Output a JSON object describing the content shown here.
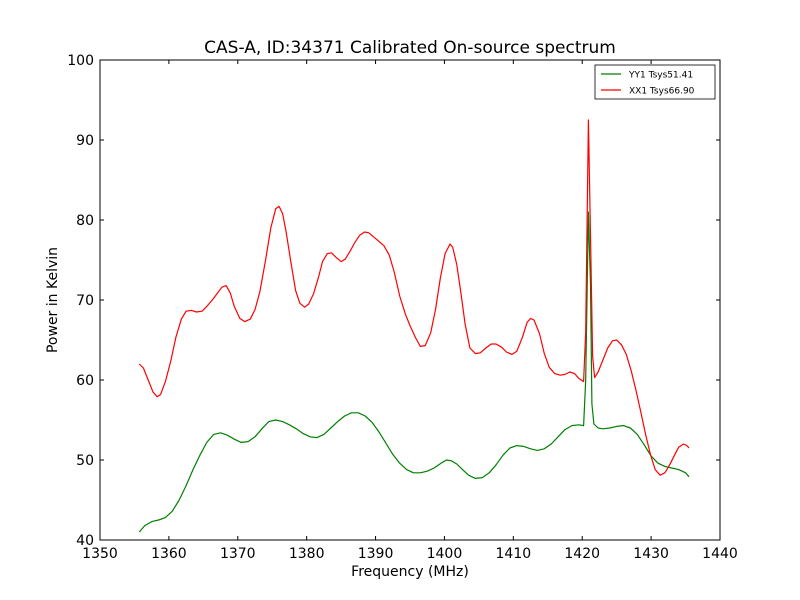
{
  "chart_data": {
    "type": "line",
    "title": "CAS-A, ID:34371 Calibrated On-source spectrum",
    "xlabel": "Frequency (MHz)",
    "ylabel": "Power in Kelvin",
    "xlim": [
      1350,
      1440
    ],
    "ylim": [
      40,
      100
    ],
    "xticks": [
      1350,
      1360,
      1370,
      1380,
      1390,
      1400,
      1410,
      1420,
      1430,
      1440
    ],
    "yticks": [
      40,
      50,
      60,
      70,
      80,
      90,
      100
    ],
    "grid": false,
    "legend_position": "top-right",
    "series": [
      {
        "name": "YY1 Tsys51.41",
        "color": "#008000",
        "points": [
          [
            1355.7,
            41.0
          ],
          [
            1356.5,
            41.8
          ],
          [
            1357.5,
            42.3
          ],
          [
            1358.5,
            42.5
          ],
          [
            1359.5,
            42.8
          ],
          [
            1360.5,
            43.6
          ],
          [
            1361.5,
            45.0
          ],
          [
            1362.5,
            46.8
          ],
          [
            1363.5,
            48.8
          ],
          [
            1364.5,
            50.6
          ],
          [
            1365.5,
            52.2
          ],
          [
            1366.5,
            53.2
          ],
          [
            1367.5,
            53.4
          ],
          [
            1368.5,
            53.1
          ],
          [
            1369.5,
            52.6
          ],
          [
            1370.5,
            52.2
          ],
          [
            1371.5,
            52.3
          ],
          [
            1372.5,
            52.9
          ],
          [
            1373.5,
            53.9
          ],
          [
            1374.5,
            54.8
          ],
          [
            1375.5,
            55.0
          ],
          [
            1376.5,
            54.8
          ],
          [
            1377.5,
            54.4
          ],
          [
            1378.5,
            53.9
          ],
          [
            1379.5,
            53.3
          ],
          [
            1380.5,
            52.9
          ],
          [
            1381.5,
            52.8
          ],
          [
            1382.5,
            53.2
          ],
          [
            1383.5,
            54.0
          ],
          [
            1384.5,
            54.8
          ],
          [
            1385.5,
            55.5
          ],
          [
            1386.5,
            55.9
          ],
          [
            1387.5,
            55.9
          ],
          [
            1388.5,
            55.5
          ],
          [
            1389.5,
            54.7
          ],
          [
            1390.5,
            53.5
          ],
          [
            1391.5,
            52.1
          ],
          [
            1392.5,
            50.7
          ],
          [
            1393.5,
            49.6
          ],
          [
            1394.5,
            48.8
          ],
          [
            1395.5,
            48.4
          ],
          [
            1396.5,
            48.4
          ],
          [
            1397.5,
            48.6
          ],
          [
            1398.5,
            49.0
          ],
          [
            1399.5,
            49.6
          ],
          [
            1400.3,
            50.0
          ],
          [
            1401.0,
            49.9
          ],
          [
            1401.8,
            49.5
          ],
          [
            1402.5,
            48.9
          ],
          [
            1403.5,
            48.1
          ],
          [
            1404.5,
            47.7
          ],
          [
            1405.5,
            47.8
          ],
          [
            1406.5,
            48.4
          ],
          [
            1407.5,
            49.4
          ],
          [
            1408.5,
            50.6
          ],
          [
            1409.5,
            51.5
          ],
          [
            1410.5,
            51.8
          ],
          [
            1411.5,
            51.7
          ],
          [
            1412.5,
            51.4
          ],
          [
            1413.5,
            51.2
          ],
          [
            1414.5,
            51.4
          ],
          [
            1415.5,
            52.0
          ],
          [
            1416.5,
            52.9
          ],
          [
            1417.5,
            53.8
          ],
          [
            1418.5,
            54.3
          ],
          [
            1419.5,
            54.4
          ],
          [
            1420.2,
            54.3
          ],
          [
            1420.5,
            60.0
          ],
          [
            1420.9,
            81.0
          ],
          [
            1421.2,
            72.0
          ],
          [
            1421.4,
            57.0
          ],
          [
            1421.7,
            54.5
          ],
          [
            1422.3,
            54.0
          ],
          [
            1423.0,
            53.9
          ],
          [
            1424.0,
            54.0
          ],
          [
            1425.0,
            54.2
          ],
          [
            1426.0,
            54.3
          ],
          [
            1427.0,
            54.0
          ],
          [
            1428.0,
            53.2
          ],
          [
            1429.0,
            51.9
          ],
          [
            1430.0,
            50.5
          ],
          [
            1431.0,
            49.6
          ],
          [
            1432.0,
            49.2
          ],
          [
            1433.0,
            49.0
          ],
          [
            1434.0,
            48.8
          ],
          [
            1435.0,
            48.4
          ],
          [
            1435.5,
            47.9
          ]
        ]
      },
      {
        "name": "XX1 Tsys66.90",
        "color": "#ff0000",
        "points": [
          [
            1355.7,
            62.0
          ],
          [
            1356.3,
            61.5
          ],
          [
            1357.0,
            60.0
          ],
          [
            1357.7,
            58.5
          ],
          [
            1358.3,
            57.9
          ],
          [
            1358.8,
            58.2
          ],
          [
            1359.5,
            59.8
          ],
          [
            1360.3,
            62.5
          ],
          [
            1361.0,
            65.3
          ],
          [
            1361.8,
            67.6
          ],
          [
            1362.5,
            68.6
          ],
          [
            1363.3,
            68.7
          ],
          [
            1364.0,
            68.5
          ],
          [
            1364.8,
            68.6
          ],
          [
            1365.5,
            69.2
          ],
          [
            1366.3,
            70.0
          ],
          [
            1367.0,
            70.8
          ],
          [
            1367.7,
            71.6
          ],
          [
            1368.3,
            71.8
          ],
          [
            1368.9,
            70.9
          ],
          [
            1369.5,
            69.2
          ],
          [
            1370.3,
            67.7
          ],
          [
            1371.0,
            67.3
          ],
          [
            1371.8,
            67.6
          ],
          [
            1372.5,
            68.8
          ],
          [
            1373.2,
            71.0
          ],
          [
            1374.0,
            74.8
          ],
          [
            1374.8,
            79.0
          ],
          [
            1375.5,
            81.4
          ],
          [
            1376.0,
            81.7
          ],
          [
            1376.5,
            80.8
          ],
          [
            1377.0,
            78.6
          ],
          [
            1377.7,
            74.8
          ],
          [
            1378.4,
            71.2
          ],
          [
            1379.0,
            69.6
          ],
          [
            1379.7,
            69.1
          ],
          [
            1380.3,
            69.5
          ],
          [
            1381.0,
            70.8
          ],
          [
            1381.7,
            72.8
          ],
          [
            1382.3,
            74.8
          ],
          [
            1383.0,
            75.8
          ],
          [
            1383.6,
            75.9
          ],
          [
            1384.3,
            75.3
          ],
          [
            1385.0,
            74.8
          ],
          [
            1385.6,
            75.1
          ],
          [
            1386.3,
            76.1
          ],
          [
            1387.0,
            77.2
          ],
          [
            1387.7,
            78.1
          ],
          [
            1388.4,
            78.5
          ],
          [
            1389.0,
            78.4
          ],
          [
            1389.7,
            77.9
          ],
          [
            1390.4,
            77.4
          ],
          [
            1391.2,
            76.8
          ],
          [
            1392.0,
            75.6
          ],
          [
            1392.7,
            73.5
          ],
          [
            1393.5,
            70.5
          ],
          [
            1394.3,
            68.3
          ],
          [
            1395.0,
            66.8
          ],
          [
            1395.8,
            65.3
          ],
          [
            1396.5,
            64.2
          ],
          [
            1397.2,
            64.3
          ],
          [
            1398.0,
            65.9
          ],
          [
            1398.7,
            68.8
          ],
          [
            1399.4,
            72.7
          ],
          [
            1400.1,
            75.8
          ],
          [
            1400.8,
            77.0
          ],
          [
            1401.2,
            76.6
          ],
          [
            1401.8,
            74.4
          ],
          [
            1402.4,
            70.8
          ],
          [
            1403.0,
            67.0
          ],
          [
            1403.7,
            64.0
          ],
          [
            1404.5,
            63.3
          ],
          [
            1405.2,
            63.4
          ],
          [
            1406.0,
            64.0
          ],
          [
            1406.8,
            64.5
          ],
          [
            1407.5,
            64.5
          ],
          [
            1408.3,
            64.1
          ],
          [
            1409.0,
            63.5
          ],
          [
            1409.8,
            63.2
          ],
          [
            1410.5,
            63.6
          ],
          [
            1411.3,
            65.3
          ],
          [
            1412.0,
            67.2
          ],
          [
            1412.5,
            67.7
          ],
          [
            1413.0,
            67.5
          ],
          [
            1413.8,
            65.8
          ],
          [
            1414.5,
            63.3
          ],
          [
            1415.2,
            61.6
          ],
          [
            1416.0,
            60.8
          ],
          [
            1416.8,
            60.6
          ],
          [
            1417.5,
            60.7
          ],
          [
            1418.2,
            61.0
          ],
          [
            1418.9,
            60.8
          ],
          [
            1419.5,
            60.2
          ],
          [
            1420.2,
            59.8
          ],
          [
            1420.5,
            66.0
          ],
          [
            1420.9,
            92.5
          ],
          [
            1421.2,
            78.0
          ],
          [
            1421.5,
            63.0
          ],
          [
            1421.8,
            60.3
          ],
          [
            1422.3,
            61.0
          ],
          [
            1423.0,
            62.5
          ],
          [
            1423.7,
            64.0
          ],
          [
            1424.4,
            64.9
          ],
          [
            1425.0,
            65.0
          ],
          [
            1425.7,
            64.4
          ],
          [
            1426.4,
            63.2
          ],
          [
            1427.1,
            61.2
          ],
          [
            1427.8,
            58.7
          ],
          [
            1428.5,
            56.0
          ],
          [
            1429.2,
            53.2
          ],
          [
            1429.9,
            50.7
          ],
          [
            1430.6,
            48.8
          ],
          [
            1431.3,
            48.1
          ],
          [
            1432.0,
            48.4
          ],
          [
            1432.7,
            49.4
          ],
          [
            1433.4,
            50.6
          ],
          [
            1434.0,
            51.6
          ],
          [
            1434.7,
            52.0
          ],
          [
            1435.2,
            51.8
          ],
          [
            1435.5,
            51.5
          ]
        ]
      }
    ]
  }
}
